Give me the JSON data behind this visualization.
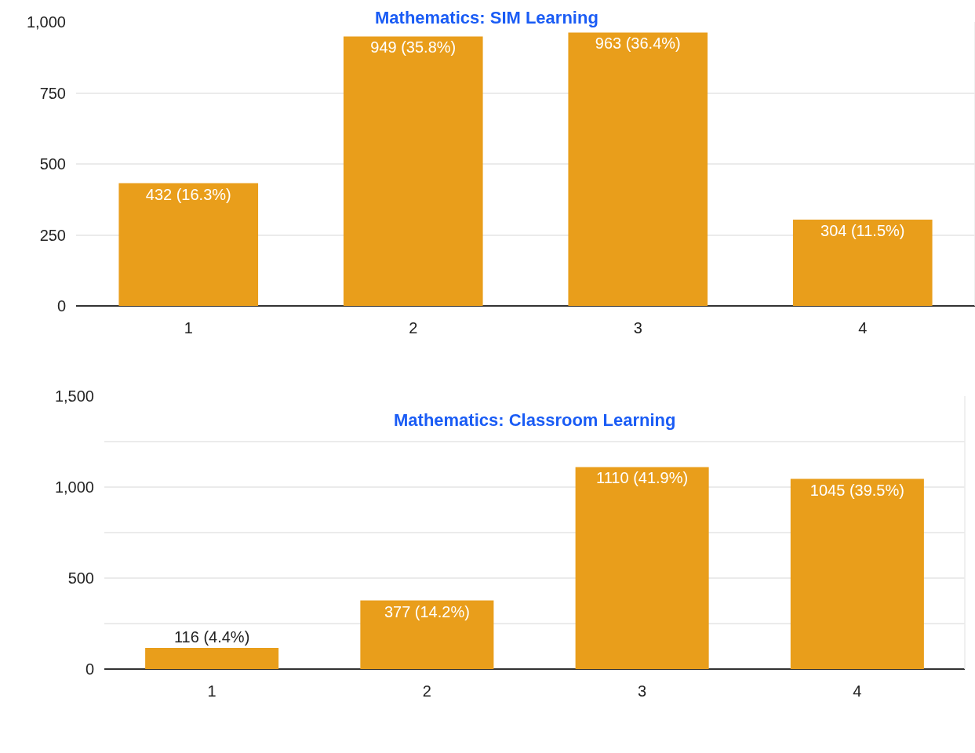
{
  "chart_data": [
    {
      "type": "bar",
      "title": "Mathematics: SIM Learning",
      "categories": [
        "1",
        "2",
        "3",
        "4"
      ],
      "values": [
        432,
        949,
        963,
        304
      ],
      "value_labels": [
        "432 (16.3%)",
        "949 (35.8%)",
        "963 (36.4%)",
        "304 (11.5%)"
      ],
      "color": "#e99e1b",
      "ylim": [
        0,
        1000
      ],
      "yticks": [
        {
          "value": 0,
          "label": "0"
        },
        {
          "value": 250,
          "label": "250"
        },
        {
          "value": 500,
          "label": "500"
        },
        {
          "value": 750,
          "label": "750"
        },
        {
          "value": 1000,
          "label": "1,000"
        }
      ],
      "grid": "y"
    },
    {
      "type": "bar",
      "title": "Mathematics: Classroom Learning",
      "categories": [
        "1",
        "2",
        "3",
        "4"
      ],
      "values": [
        116,
        377,
        1110,
        1045
      ],
      "value_labels": [
        "116 (4.4%)",
        "377 (14.2%)",
        "1110 (41.9%)",
        "1045 (39.5%)"
      ],
      "color": "#e99e1b",
      "ylim": [
        0,
        1500
      ],
      "yticks": [
        {
          "value": 0,
          "label": "0"
        },
        {
          "value": 250,
          "label": null
        },
        {
          "value": 500,
          "label": "500"
        },
        {
          "value": 750,
          "label": null
        },
        {
          "value": 1000,
          "label": "1,000"
        },
        {
          "value": 1250,
          "label": null
        },
        {
          "value": 1500,
          "label": "1,500"
        }
      ],
      "grid": "y"
    }
  ]
}
